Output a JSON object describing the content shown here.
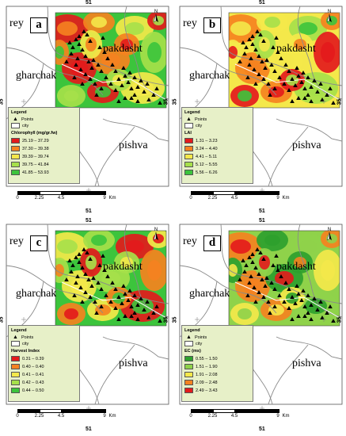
{
  "coords": {
    "top": "51",
    "bottom": "51",
    "left": "35",
    "right": "35"
  },
  "cities": {
    "rey": "rey",
    "pakdasht": "pakdasht",
    "gharchak": "gharchak",
    "pishva": "pishva",
    "amin": "amin"
  },
  "north": "N",
  "legend": {
    "title": "Legend",
    "points": "Points",
    "city": "city"
  },
  "scale": {
    "ticks": [
      "0",
      "2.25",
      "4.5",
      "9"
    ],
    "unit": "Km"
  },
  "panels": [
    {
      "id": "a",
      "label": "a",
      "variable": "Chlorophyll (mg/gr.fw)",
      "show_amin": false,
      "classes": [
        {
          "range": "25.19 – 37.29",
          "color": "#e31a1c"
        },
        {
          "range": "37.30 – 39.38",
          "color": "#f58220"
        },
        {
          "range": "39.39 – 39.74",
          "color": "#f4e84a"
        },
        {
          "range": "39.75 – 41.84",
          "color": "#a6e04a"
        },
        {
          "range": "41.85 – 53.93",
          "color": "#3cc43c"
        }
      ]
    },
    {
      "id": "b",
      "label": "b",
      "variable": "LAI",
      "show_amin": true,
      "classes": [
        {
          "range": "1.31 – 3.23",
          "color": "#e31a1c"
        },
        {
          "range": "3.24 – 4.40",
          "color": "#f58220"
        },
        {
          "range": "4.41 – 5.11",
          "color": "#f4e84a"
        },
        {
          "range": "5.12 – 5.55",
          "color": "#a6e04a"
        },
        {
          "range": "5.56 – 6.26",
          "color": "#3cc43c"
        }
      ]
    },
    {
      "id": "c",
      "label": "c",
      "variable": "Harvest Index",
      "show_amin": true,
      "classes": [
        {
          "range": "0.31 – 0.39",
          "color": "#e31a1c"
        },
        {
          "range": "0.40 – 0.40",
          "color": "#f58220"
        },
        {
          "range": "0.41 – 0.41",
          "color": "#f4e84a"
        },
        {
          "range": "0.42 – 0.43",
          "color": "#a6e04a"
        },
        {
          "range": "0.44 – 0.50",
          "color": "#3cc43c"
        }
      ]
    },
    {
      "id": "d",
      "label": "d",
      "variable": "EC (ms)",
      "show_amin": true,
      "classes": [
        {
          "range": "0.55 – 1.50",
          "color": "#2ea02e"
        },
        {
          "range": "1.51 – 1.90",
          "color": "#8fd24a"
        },
        {
          "range": "1.91 – 2.08",
          "color": "#f4e84a"
        },
        {
          "range": "2.09 – 2.48",
          "color": "#f58220"
        },
        {
          "range": "2.49 – 3.43",
          "color": "#e31a1c"
        }
      ]
    }
  ]
}
